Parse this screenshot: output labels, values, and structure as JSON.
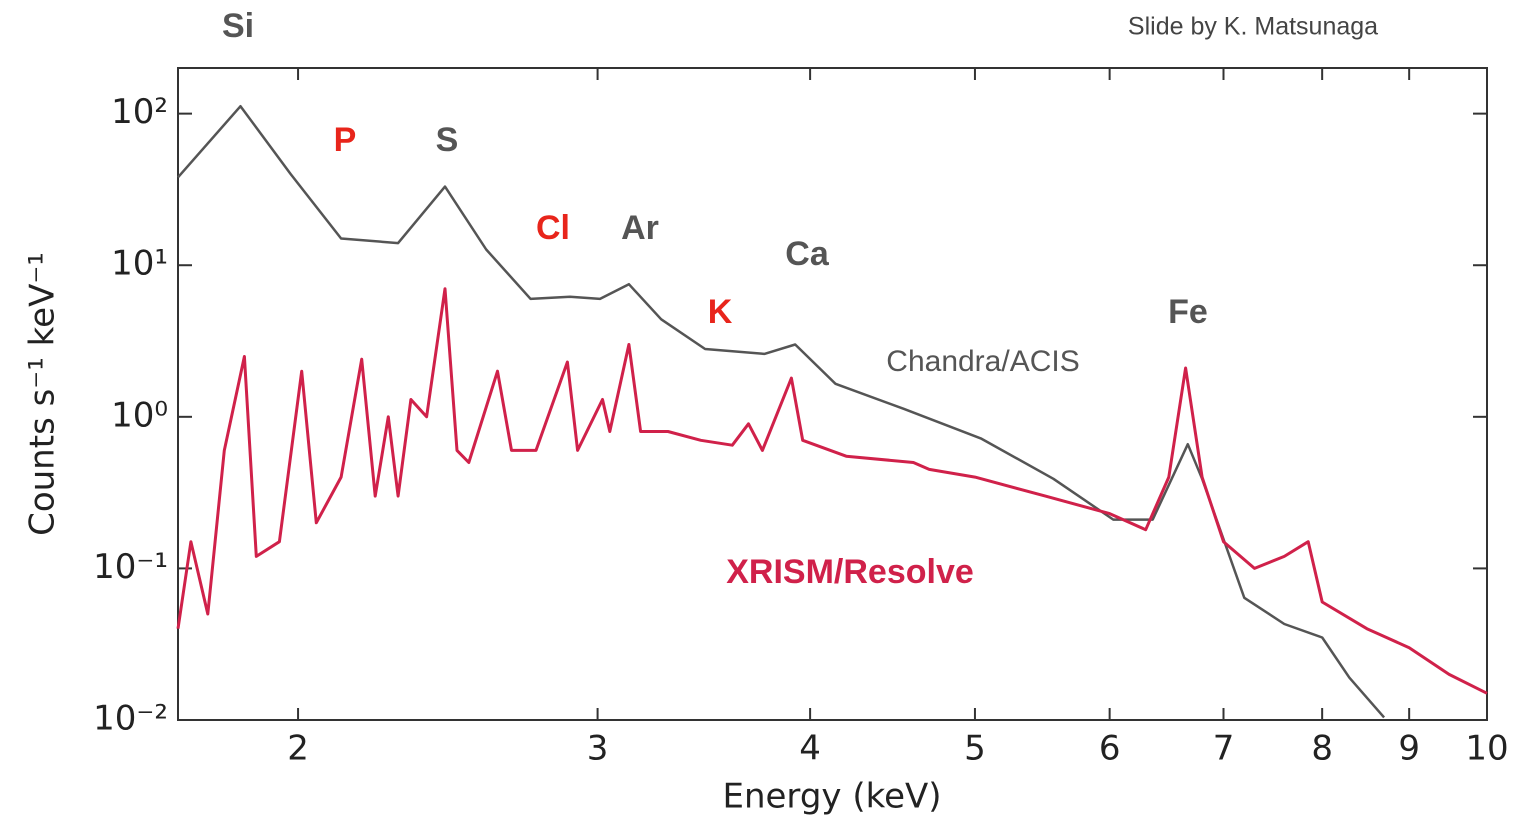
{
  "chart_data": {
    "type": "line",
    "credit": "Slide by K. Matsunaga",
    "x_label": "Energy (keV)",
    "y_label": "Counts s⁻¹ keV⁻¹",
    "xscale": "log",
    "yscale": "log",
    "xlim": [
      1.7,
      10
    ],
    "ylim": [
      0.01,
      200
    ],
    "xticks": [
      2,
      3,
      4,
      5,
      6,
      7,
      8,
      9,
      10
    ],
    "yticks": [
      {
        "value": 0.01,
        "label": "10⁻²"
      },
      {
        "value": 0.1,
        "label": "10⁻¹"
      },
      {
        "value": 1,
        "label": "10⁰"
      },
      {
        "value": 10,
        "label": "10¹"
      },
      {
        "value": 100,
        "label": "10²"
      }
    ],
    "annotations": [
      {
        "text": "Si",
        "color": "#555555"
      },
      {
        "text": "P",
        "color": "#e8251b"
      },
      {
        "text": "S",
        "color": "#555555"
      },
      {
        "text": "Cl",
        "color": "#e8251b"
      },
      {
        "text": "Ar",
        "color": "#555555"
      },
      {
        "text": "K",
        "color": "#e8251b"
      },
      {
        "text": "Ca",
        "color": "#555555"
      },
      {
        "text": "Fe",
        "color": "#555555"
      }
    ],
    "series": [
      {
        "name": "Chandra/ACIS",
        "color": "#555555",
        "x": [
          1.7,
          1.85,
          1.98,
          2.12,
          2.29,
          2.44,
          2.58,
          2.74,
          2.89,
          3.01,
          3.13,
          3.27,
          3.47,
          3.76,
          3.92,
          4.14,
          4.54,
          5.04,
          5.56,
          6.03,
          6.36,
          6.67,
          6.8,
          7.2,
          7.6,
          8.0,
          8.3,
          8.7
        ],
        "values": [
          38,
          112,
          40,
          15,
          14,
          33,
          12.7,
          6,
          6.2,
          6,
          7.5,
          4.4,
          2.8,
          2.6,
          3.0,
          1.65,
          1.13,
          0.72,
          0.39,
          0.21,
          0.21,
          0.66,
          0.39,
          0.064,
          0.043,
          0.035,
          0.019,
          0.0104
        ]
      },
      {
        "name": "XRISM/Resolve",
        "color": "#d0214a",
        "x": [
          1.7,
          1.73,
          1.77,
          1.81,
          1.86,
          1.89,
          1.95,
          2.01,
          2.05,
          2.12,
          2.18,
          2.22,
          2.26,
          2.29,
          2.33,
          2.38,
          2.44,
          2.48,
          2.52,
          2.62,
          2.67,
          2.76,
          2.88,
          2.92,
          3.02,
          3.05,
          3.13,
          3.18,
          3.3,
          3.45,
          3.6,
          3.68,
          3.75,
          3.9,
          3.96,
          4.2,
          4.6,
          4.7,
          5.0,
          5.5,
          6.0,
          6.3,
          6.5,
          6.65,
          6.8,
          7.0,
          7.3,
          7.6,
          7.85,
          8.0,
          8.5,
          9.0,
          9.5,
          10.0
        ],
        "values": [
          0.04,
          0.15,
          0.05,
          0.6,
          2.5,
          0.12,
          0.15,
          2.0,
          0.2,
          0.4,
          2.4,
          0.3,
          1.0,
          0.3,
          1.3,
          1.0,
          7,
          0.6,
          0.5,
          2.0,
          0.6,
          0.6,
          2.3,
          0.6,
          1.3,
          0.8,
          3.0,
          0.8,
          0.8,
          0.7,
          0.65,
          0.9,
          0.6,
          1.8,
          0.7,
          0.55,
          0.5,
          0.45,
          0.4,
          0.3,
          0.23,
          0.18,
          0.4,
          2.1,
          0.4,
          0.15,
          0.1,
          0.12,
          0.15,
          0.06,
          0.04,
          0.03,
          0.02,
          0.015
        ]
      }
    ]
  }
}
